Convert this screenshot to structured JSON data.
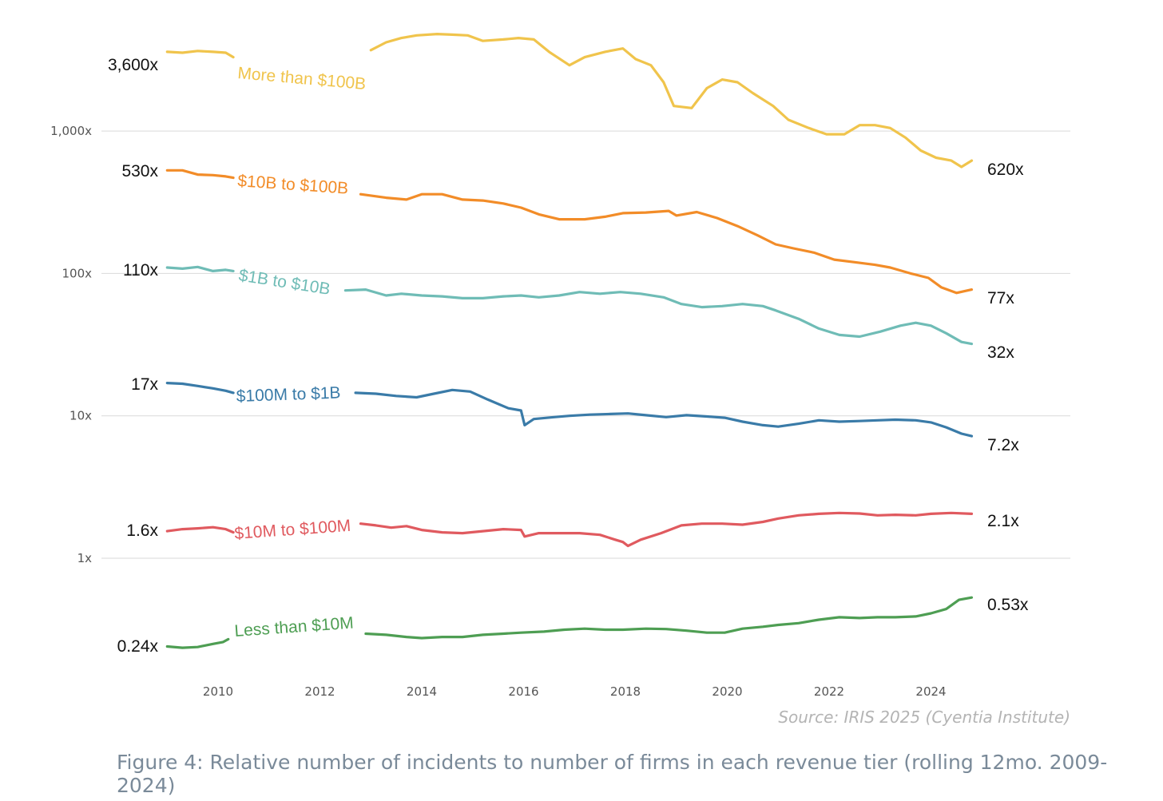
{
  "chart_data": {
    "type": "line",
    "y_scale": "log",
    "ylim": [
      0.14,
      5000
    ],
    "xlim": [
      2009.0,
      2025.0
    ],
    "grid": true,
    "y_ticks": [
      {
        "value": 1000,
        "label": "1,000x"
      },
      {
        "value": 100,
        "label": "100x"
      },
      {
        "value": 10,
        "label": "10x"
      },
      {
        "value": 1,
        "label": "1x"
      }
    ],
    "x_ticks": [
      {
        "value": 2010,
        "label": "2010"
      },
      {
        "value": 2012,
        "label": "2012"
      },
      {
        "value": 2014,
        "label": "2014"
      },
      {
        "value": 2016,
        "label": "2016"
      },
      {
        "value": 2018,
        "label": "2018"
      },
      {
        "value": 2020,
        "label": "2020"
      },
      {
        "value": 2022,
        "label": "2022"
      },
      {
        "value": 2024,
        "label": "2024"
      }
    ],
    "series": [
      {
        "name": "More than $100B",
        "color": "#f0c44c",
        "start_label": "3,600x",
        "end_label": "620x",
        "gap": [
          2010.3,
          2013.0
        ],
        "points": [
          [
            2009.0,
            3600
          ],
          [
            2009.3,
            3550
          ],
          [
            2009.6,
            3650
          ],
          [
            2009.9,
            3600
          ],
          [
            2010.15,
            3550
          ],
          [
            2010.3,
            3300
          ],
          [
            2013.0,
            3700
          ],
          [
            2013.3,
            4200
          ],
          [
            2013.6,
            4500
          ],
          [
            2013.9,
            4700
          ],
          [
            2014.3,
            4800
          ],
          [
            2014.6,
            4750
          ],
          [
            2014.9,
            4700
          ],
          [
            2015.2,
            4300
          ],
          [
            2015.6,
            4400
          ],
          [
            2015.9,
            4500
          ],
          [
            2016.2,
            4400
          ],
          [
            2016.5,
            3600
          ],
          [
            2016.9,
            2900
          ],
          [
            2017.2,
            3300
          ],
          [
            2017.6,
            3600
          ],
          [
            2017.95,
            3800
          ],
          [
            2018.2,
            3200
          ],
          [
            2018.5,
            2900
          ],
          [
            2018.75,
            2200
          ],
          [
            2018.95,
            1500
          ],
          [
            2019.3,
            1450
          ],
          [
            2019.6,
            2000
          ],
          [
            2019.9,
            2300
          ],
          [
            2020.2,
            2200
          ],
          [
            2020.5,
            1850
          ],
          [
            2020.9,
            1500
          ],
          [
            2021.2,
            1200
          ],
          [
            2021.6,
            1050
          ],
          [
            2021.95,
            950
          ],
          [
            2022.3,
            950
          ],
          [
            2022.6,
            1100
          ],
          [
            2022.9,
            1100
          ],
          [
            2023.2,
            1050
          ],
          [
            2023.5,
            900
          ],
          [
            2023.8,
            730
          ],
          [
            2024.1,
            650
          ],
          [
            2024.4,
            620
          ],
          [
            2024.6,
            560
          ],
          [
            2024.8,
            620
          ]
        ]
      },
      {
        "name": "$10B to $100B",
        "color": "#f28c28",
        "start_label": "530x",
        "end_label": "77x",
        "gap": [
          2010.3,
          2012.8
        ],
        "points": [
          [
            2009.0,
            530
          ],
          [
            2009.3,
            530
          ],
          [
            2009.6,
            495
          ],
          [
            2009.9,
            490
          ],
          [
            2010.15,
            480
          ],
          [
            2010.3,
            470
          ],
          [
            2012.8,
            360
          ],
          [
            2013.3,
            340
          ],
          [
            2013.7,
            330
          ],
          [
            2014.0,
            360
          ],
          [
            2014.4,
            360
          ],
          [
            2014.8,
            330
          ],
          [
            2015.2,
            325
          ],
          [
            2015.6,
            310
          ],
          [
            2015.95,
            290
          ],
          [
            2016.3,
            260
          ],
          [
            2016.7,
            240
          ],
          [
            2017.2,
            240
          ],
          [
            2017.6,
            250
          ],
          [
            2017.95,
            265
          ],
          [
            2018.4,
            268
          ],
          [
            2018.85,
            275
          ],
          [
            2019.0,
            255
          ],
          [
            2019.4,
            270
          ],
          [
            2019.8,
            245
          ],
          [
            2020.2,
            215
          ],
          [
            2020.6,
            185
          ],
          [
            2020.95,
            160
          ],
          [
            2021.3,
            150
          ],
          [
            2021.7,
            140
          ],
          [
            2022.1,
            125
          ],
          [
            2022.5,
            120
          ],
          [
            2022.9,
            115
          ],
          [
            2023.2,
            110
          ],
          [
            2023.6,
            100
          ],
          [
            2023.95,
            93
          ],
          [
            2024.2,
            80
          ],
          [
            2024.5,
            73
          ],
          [
            2024.8,
            77
          ]
        ]
      },
      {
        "name": "$1B to $10B",
        "color": "#6fbcb6",
        "start_label": "110x",
        "end_label": "32x",
        "gap": [
          2010.3,
          2012.5
        ],
        "points": [
          [
            2009.0,
            110
          ],
          [
            2009.3,
            108
          ],
          [
            2009.6,
            111
          ],
          [
            2009.9,
            104
          ],
          [
            2010.15,
            106
          ],
          [
            2010.3,
            104
          ],
          [
            2012.5,
            76
          ],
          [
            2012.9,
            77
          ],
          [
            2013.3,
            70
          ],
          [
            2013.6,
            72
          ],
          [
            2014.0,
            70
          ],
          [
            2014.4,
            69
          ],
          [
            2014.8,
            67
          ],
          [
            2015.2,
            67
          ],
          [
            2015.6,
            69
          ],
          [
            2015.95,
            70
          ],
          [
            2016.3,
            68
          ],
          [
            2016.7,
            70
          ],
          [
            2017.1,
            74
          ],
          [
            2017.5,
            72
          ],
          [
            2017.9,
            74
          ],
          [
            2018.3,
            72
          ],
          [
            2018.75,
            68
          ],
          [
            2019.1,
            61
          ],
          [
            2019.5,
            58
          ],
          [
            2019.9,
            59
          ],
          [
            2020.3,
            61
          ],
          [
            2020.7,
            59
          ],
          [
            2020.95,
            55
          ],
          [
            2021.4,
            48
          ],
          [
            2021.8,
            41
          ],
          [
            2022.2,
            37
          ],
          [
            2022.6,
            36
          ],
          [
            2023.0,
            39
          ],
          [
            2023.4,
            43
          ],
          [
            2023.7,
            45
          ],
          [
            2024.0,
            43
          ],
          [
            2024.3,
            38
          ],
          [
            2024.6,
            33
          ],
          [
            2024.8,
            32
          ]
        ]
      },
      {
        "name": "$100M to $1B",
        "color": "#3a7ba8",
        "start_label": "17x",
        "end_label": "7.2x",
        "gap": [
          2010.3,
          2012.7
        ],
        "points": [
          [
            2009.0,
            17
          ],
          [
            2009.3,
            16.8
          ],
          [
            2009.6,
            16.2
          ],
          [
            2009.9,
            15.6
          ],
          [
            2010.15,
            15.0
          ],
          [
            2010.3,
            14.5
          ],
          [
            2012.7,
            14.5
          ],
          [
            2013.1,
            14.3
          ],
          [
            2013.5,
            13.8
          ],
          [
            2013.9,
            13.5
          ],
          [
            2014.2,
            14.2
          ],
          [
            2014.6,
            15.2
          ],
          [
            2014.95,
            14.8
          ],
          [
            2015.3,
            13.0
          ],
          [
            2015.7,
            11.3
          ],
          [
            2015.95,
            10.9
          ],
          [
            2016.02,
            8.6
          ],
          [
            2016.2,
            9.5
          ],
          [
            2016.6,
            9.8
          ],
          [
            2016.9,
            10.0
          ],
          [
            2017.3,
            10.2
          ],
          [
            2017.7,
            10.3
          ],
          [
            2018.05,
            10.4
          ],
          [
            2018.4,
            10.1
          ],
          [
            2018.8,
            9.8
          ],
          [
            2019.2,
            10.1
          ],
          [
            2019.6,
            9.9
          ],
          [
            2019.95,
            9.7
          ],
          [
            2020.3,
            9.1
          ],
          [
            2020.7,
            8.6
          ],
          [
            2021.0,
            8.4
          ],
          [
            2021.4,
            8.8
          ],
          [
            2021.8,
            9.3
          ],
          [
            2022.2,
            9.1
          ],
          [
            2022.6,
            9.2
          ],
          [
            2022.95,
            9.3
          ],
          [
            2023.3,
            9.4
          ],
          [
            2023.7,
            9.3
          ],
          [
            2024.0,
            9.0
          ],
          [
            2024.3,
            8.3
          ],
          [
            2024.6,
            7.5
          ],
          [
            2024.8,
            7.2
          ]
        ]
      },
      {
        "name": "$10M to $100M",
        "color": "#e05a5f",
        "start_label": "1.6x",
        "end_label": "2.1x",
        "gap": [
          2010.3,
          2012.8
        ],
        "points": [
          [
            2009.0,
            1.55
          ],
          [
            2009.3,
            1.6
          ],
          [
            2009.6,
            1.62
          ],
          [
            2009.9,
            1.65
          ],
          [
            2010.15,
            1.6
          ],
          [
            2010.3,
            1.52
          ],
          [
            2012.8,
            1.75
          ],
          [
            2013.1,
            1.7
          ],
          [
            2013.4,
            1.64
          ],
          [
            2013.7,
            1.68
          ],
          [
            2014.0,
            1.58
          ],
          [
            2014.4,
            1.52
          ],
          [
            2014.8,
            1.5
          ],
          [
            2015.2,
            1.55
          ],
          [
            2015.6,
            1.6
          ],
          [
            2015.95,
            1.58
          ],
          [
            2016.02,
            1.42
          ],
          [
            2016.3,
            1.5
          ],
          [
            2016.7,
            1.5
          ],
          [
            2017.1,
            1.5
          ],
          [
            2017.5,
            1.46
          ],
          [
            2017.8,
            1.35
          ],
          [
            2017.95,
            1.3
          ],
          [
            2018.05,
            1.22
          ],
          [
            2018.3,
            1.35
          ],
          [
            2018.7,
            1.5
          ],
          [
            2019.1,
            1.7
          ],
          [
            2019.5,
            1.75
          ],
          [
            2019.9,
            1.75
          ],
          [
            2020.3,
            1.72
          ],
          [
            2020.7,
            1.8
          ],
          [
            2021.0,
            1.9
          ],
          [
            2021.4,
            2.0
          ],
          [
            2021.8,
            2.05
          ],
          [
            2022.2,
            2.08
          ],
          [
            2022.6,
            2.06
          ],
          [
            2022.95,
            2.0
          ],
          [
            2023.3,
            2.02
          ],
          [
            2023.7,
            2.0
          ],
          [
            2024.0,
            2.05
          ],
          [
            2024.4,
            2.08
          ],
          [
            2024.8,
            2.05
          ]
        ]
      },
      {
        "name": "Less than $10M",
        "color": "#4e9e53",
        "start_label": "0.24x",
        "end_label": "0.53x",
        "gap": [
          2010.2,
          2012.9
        ],
        "points": [
          [
            2009.0,
            0.24
          ],
          [
            2009.3,
            0.235
          ],
          [
            2009.6,
            0.238
          ],
          [
            2009.9,
            0.25
          ],
          [
            2010.1,
            0.258
          ],
          [
            2010.2,
            0.27
          ],
          [
            2012.9,
            0.295
          ],
          [
            2013.3,
            0.29
          ],
          [
            2013.7,
            0.28
          ],
          [
            2014.0,
            0.275
          ],
          [
            2014.4,
            0.28
          ],
          [
            2014.8,
            0.28
          ],
          [
            2015.2,
            0.29
          ],
          [
            2015.6,
            0.295
          ],
          [
            2015.95,
            0.3
          ],
          [
            2016.4,
            0.305
          ],
          [
            2016.8,
            0.315
          ],
          [
            2017.2,
            0.32
          ],
          [
            2017.6,
            0.315
          ],
          [
            2017.95,
            0.315
          ],
          [
            2018.4,
            0.32
          ],
          [
            2018.8,
            0.318
          ],
          [
            2019.2,
            0.31
          ],
          [
            2019.6,
            0.3
          ],
          [
            2019.95,
            0.3
          ],
          [
            2020.3,
            0.32
          ],
          [
            2020.7,
            0.33
          ],
          [
            2021.0,
            0.34
          ],
          [
            2021.4,
            0.35
          ],
          [
            2021.8,
            0.37
          ],
          [
            2022.2,
            0.385
          ],
          [
            2022.6,
            0.38
          ],
          [
            2022.95,
            0.385
          ],
          [
            2023.3,
            0.385
          ],
          [
            2023.7,
            0.39
          ],
          [
            2024.0,
            0.41
          ],
          [
            2024.3,
            0.44
          ],
          [
            2024.55,
            0.51
          ],
          [
            2024.8,
            0.53
          ]
        ]
      }
    ],
    "source": "Source: IRIS 2025 (Cyentia Institute)",
    "caption": "Figure 4: Relative number of incidents to number of firms in each revenue tier (rolling 12mo. 2009-2024)"
  }
}
